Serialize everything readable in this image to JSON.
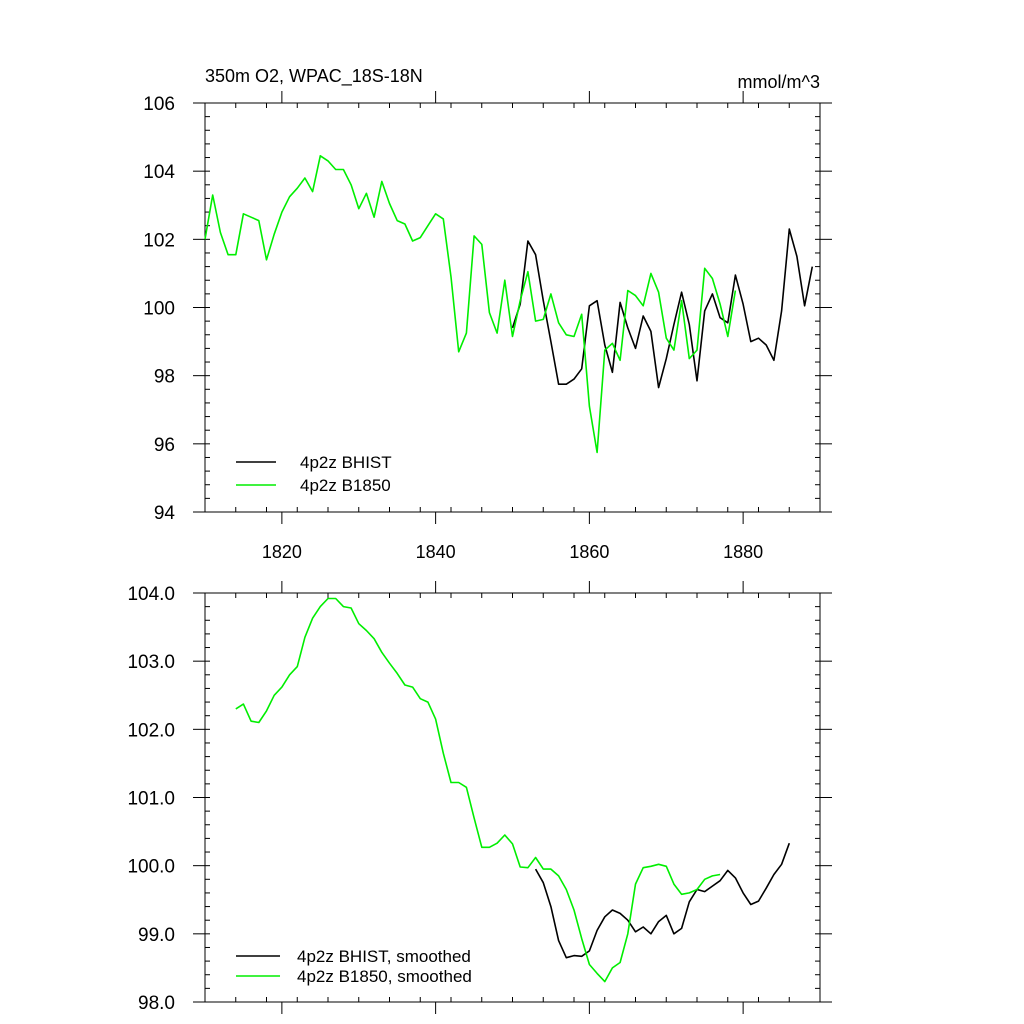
{
  "figure": {
    "background": "#ffffff"
  },
  "chart_data": [
    {
      "type": "line",
      "title": "350m O2, WPAC_18S-18N",
      "units_label": "mmol/m^3",
      "xlabel": "",
      "ylabel": "",
      "xlim": [
        1810,
        1890
      ],
      "ylim": [
        94,
        106
      ],
      "xticks": [
        1820,
        1840,
        1860,
        1880
      ],
      "xtick_labels": [
        "1820",
        "1840",
        "1860",
        "1880"
      ],
      "yticks": [
        94,
        96,
        98,
        100,
        102,
        104,
        106
      ],
      "ytick_labels": [
        "94",
        "96",
        "98",
        "100",
        "102",
        "104",
        "106"
      ],
      "grid": false,
      "legend_position": "bottom-left",
      "series": [
        {
          "name": "4p2z BHIST",
          "color": "#000000",
          "x": [
            1850,
            1851,
            1852,
            1853,
            1854,
            1855,
            1856,
            1857,
            1858,
            1859,
            1860,
            1861,
            1862,
            1863,
            1864,
            1865,
            1866,
            1867,
            1868,
            1869,
            1870,
            1871,
            1872,
            1873,
            1874,
            1875,
            1876,
            1877,
            1878,
            1879,
            1880,
            1881,
            1882,
            1883,
            1884,
            1885,
            1886,
            1887,
            1888,
            1889
          ],
          "values": [
            99.4,
            100.1,
            101.95,
            101.55,
            100.2,
            99.0,
            97.75,
            97.75,
            97.9,
            98.2,
            100.05,
            100.2,
            98.9,
            98.1,
            100.15,
            99.4,
            98.8,
            99.75,
            99.3,
            97.65,
            98.5,
            99.5,
            100.45,
            99.5,
            97.85,
            99.9,
            100.4,
            99.7,
            99.55,
            100.95,
            100.1,
            99.0,
            99.1,
            98.9,
            98.45,
            99.9,
            102.3,
            101.5,
            100.05,
            101.2
          ]
        },
        {
          "name": "4p2z B1850",
          "color": "#00ee00",
          "x": [
            1810,
            1811,
            1812,
            1813,
            1814,
            1815,
            1816,
            1817,
            1818,
            1819,
            1820,
            1821,
            1822,
            1823,
            1824,
            1825,
            1826,
            1827,
            1828,
            1829,
            1830,
            1831,
            1832,
            1833,
            1834,
            1835,
            1836,
            1837,
            1838,
            1839,
            1840,
            1841,
            1842,
            1843,
            1844,
            1845,
            1846,
            1847,
            1848,
            1849,
            1850,
            1851,
            1852,
            1853,
            1854,
            1855,
            1856,
            1857,
            1858,
            1859,
            1860,
            1861,
            1862,
            1863,
            1864,
            1865,
            1866,
            1867,
            1868,
            1869,
            1870,
            1871,
            1872,
            1873,
            1874,
            1875,
            1876,
            1877,
            1878,
            1879
          ],
          "values": [
            102.0,
            103.3,
            102.2,
            101.55,
            101.55,
            102.75,
            102.65,
            102.55,
            101.4,
            102.15,
            102.8,
            103.25,
            103.5,
            103.8,
            103.4,
            104.45,
            104.3,
            104.05,
            104.05,
            103.6,
            102.9,
            103.35,
            102.65,
            103.7,
            103.05,
            102.55,
            102.45,
            101.95,
            102.05,
            102.4,
            102.75,
            102.6,
            100.9,
            98.7,
            99.25,
            102.1,
            101.85,
            99.85,
            99.25,
            100.8,
            99.15,
            100.2,
            101.05,
            99.6,
            99.65,
            100.4,
            99.55,
            99.2,
            99.15,
            99.8,
            97.1,
            95.75,
            98.75,
            98.95,
            98.45,
            100.5,
            100.35,
            100.05,
            101.0,
            100.45,
            99.1,
            98.75,
            100.2,
            98.5,
            98.75,
            101.15,
            100.85,
            100.1,
            99.15,
            100.5
          ]
        }
      ]
    },
    {
      "type": "line",
      "title": "",
      "xlabel": "",
      "ylabel": "",
      "xlim": [
        1810,
        1890
      ],
      "ylim": [
        98.0,
        104.0
      ],
      "xticks": [
        1820,
        1840,
        1860,
        1880
      ],
      "yticks": [
        98.0,
        99.0,
        100.0,
        101.0,
        102.0,
        103.0,
        104.0
      ],
      "ytick_labels": [
        "98.0",
        "99.0",
        "100.0",
        "101.0",
        "102.0",
        "103.0",
        "104.0"
      ],
      "grid": false,
      "legend_position": "bottom-left",
      "series": [
        {
          "name": "4p2z BHIST, smoothed",
          "color": "#000000",
          "x": [
            1853,
            1854,
            1855,
            1856,
            1857,
            1858,
            1859,
            1860,
            1861,
            1862,
            1863,
            1864,
            1865,
            1866,
            1867,
            1868,
            1869,
            1870,
            1871,
            1872,
            1873,
            1874,
            1875,
            1876,
            1877,
            1878,
            1879,
            1880,
            1881,
            1882,
            1883,
            1884,
            1885,
            1886
          ],
          "values": [
            99.95,
            99.75,
            99.4,
            98.9,
            98.65,
            98.68,
            98.67,
            98.75,
            99.05,
            99.25,
            99.35,
            99.3,
            99.2,
            99.03,
            99.1,
            99.0,
            99.18,
            99.27,
            99.0,
            99.08,
            99.47,
            99.65,
            99.62,
            99.7,
            99.78,
            99.93,
            99.82,
            99.6,
            99.43,
            99.48,
            99.67,
            99.87,
            100.02,
            100.33
          ]
        },
        {
          "name": "4p2z B1850, smoothed",
          "color": "#00ee00",
          "x": [
            1814,
            1815,
            1816,
            1817,
            1818,
            1819,
            1820,
            1821,
            1822,
            1823,
            1824,
            1825,
            1826,
            1827,
            1828,
            1829,
            1830,
            1831,
            1832,
            1833,
            1834,
            1835,
            1836,
            1837,
            1838,
            1839,
            1840,
            1841,
            1842,
            1843,
            1844,
            1845,
            1846,
            1847,
            1848,
            1849,
            1850,
            1851,
            1852,
            1853,
            1854,
            1855,
            1856,
            1857,
            1858,
            1859,
            1860,
            1861,
            1862,
            1863,
            1864,
            1865,
            1866,
            1867,
            1868,
            1869,
            1870,
            1871,
            1872,
            1873,
            1874,
            1875,
            1876,
            1877
          ],
          "values": [
            102.3,
            102.37,
            102.12,
            102.1,
            102.27,
            102.5,
            102.62,
            102.8,
            102.92,
            103.35,
            103.63,
            103.8,
            103.92,
            103.92,
            103.8,
            103.78,
            103.55,
            103.45,
            103.33,
            103.13,
            102.97,
            102.82,
            102.65,
            102.62,
            102.45,
            102.4,
            102.15,
            101.65,
            101.22,
            101.22,
            101.15,
            100.7,
            100.27,
            100.27,
            100.33,
            100.45,
            100.32,
            99.98,
            99.97,
            100.12,
            99.95,
            99.95,
            99.85,
            99.65,
            99.35,
            98.93,
            98.55,
            98.42,
            98.3,
            98.5,
            98.58,
            99.0,
            99.73,
            99.97,
            99.99,
            100.02,
            99.99,
            99.73,
            99.58,
            99.6,
            99.65,
            99.8,
            99.85,
            99.87
          ]
        }
      ]
    }
  ]
}
